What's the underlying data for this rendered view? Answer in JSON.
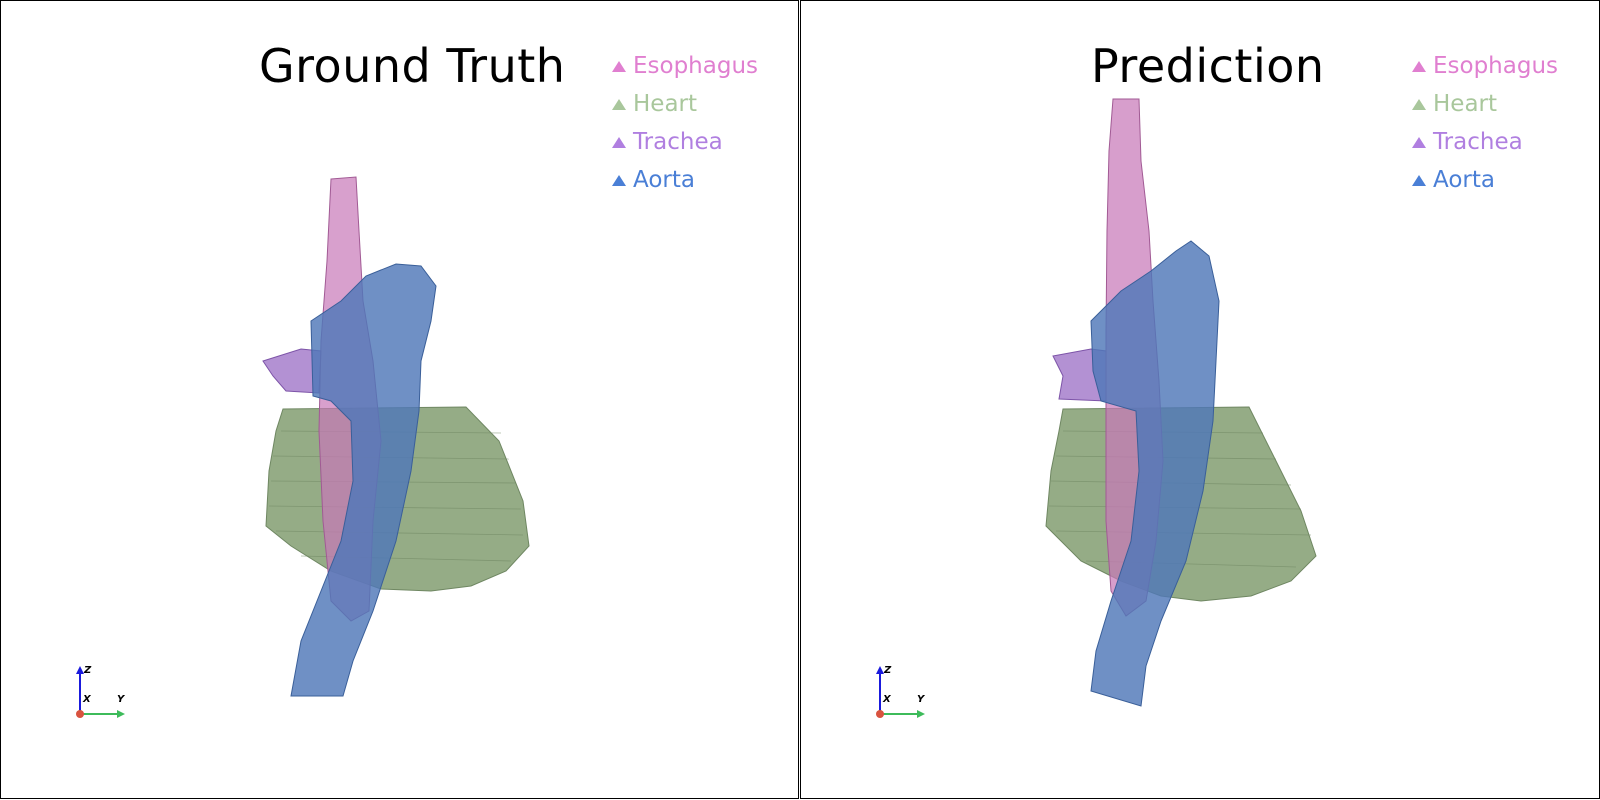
{
  "panels": [
    {
      "title": "Ground Truth",
      "legend": [
        {
          "label": "Esophagus",
          "color": "#e07fd0",
          "icon": "triangle-icon"
        },
        {
          "label": "Heart",
          "color": "#a9c79c",
          "icon": "triangle-icon"
        },
        {
          "label": "Trachea",
          "color": "#b07fe0",
          "icon": "triangle-icon"
        },
        {
          "label": "Aorta",
          "color": "#4a7fd6",
          "icon": "triangle-icon"
        }
      ],
      "axes": {
        "x": "X",
        "y": "Y",
        "z": "Z"
      }
    },
    {
      "title": "Prediction",
      "legend": [
        {
          "label": "Esophagus",
          "color": "#e07fd0",
          "icon": "triangle-icon"
        },
        {
          "label": "Heart",
          "color": "#a9c79c",
          "icon": "triangle-icon"
        },
        {
          "label": "Trachea",
          "color": "#b07fe0",
          "icon": "triangle-icon"
        },
        {
          "label": "Aorta",
          "color": "#4a7fd6",
          "icon": "triangle-icon"
        }
      ],
      "axes": {
        "x": "X",
        "y": "Y",
        "z": "Z"
      }
    }
  ],
  "colors": {
    "heart": "#8fa880",
    "esophagus": "#c778b8",
    "trachea": "#9a6cc4",
    "aorta": "#4f78b8"
  }
}
